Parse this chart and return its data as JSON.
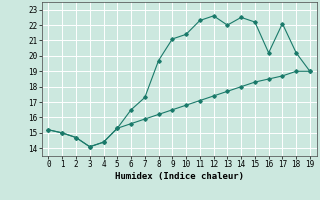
{
  "xlabel": "Humidex (Indice chaleur)",
  "ylabel": "",
  "bg_color": "#cce8df",
  "grid_color": "#ffffff",
  "line_color": "#1a7a6a",
  "xlim": [
    -0.5,
    19.5
  ],
  "ylim": [
    13.5,
    23.5
  ],
  "xticks": [
    0,
    1,
    2,
    3,
    4,
    5,
    6,
    7,
    8,
    9,
    10,
    11,
    12,
    13,
    14,
    15,
    16,
    17,
    18,
    19
  ],
  "yticks": [
    14,
    15,
    16,
    17,
    18,
    19,
    20,
    21,
    22,
    23
  ],
  "upper_x": [
    0,
    1,
    2,
    3,
    4,
    5,
    6,
    7,
    8,
    9,
    10,
    11,
    12,
    13,
    14,
    15,
    16,
    17,
    18,
    19
  ],
  "upper_y": [
    15.2,
    15.0,
    14.7,
    14.1,
    14.4,
    15.3,
    16.5,
    17.3,
    19.7,
    21.1,
    21.4,
    22.3,
    22.6,
    22.0,
    22.5,
    22.2,
    20.2,
    22.1,
    20.2,
    19.0
  ],
  "lower_x": [
    0,
    1,
    2,
    3,
    4,
    5,
    6,
    7,
    8,
    9,
    10,
    11,
    12,
    13,
    14,
    15,
    16,
    17,
    18,
    19
  ],
  "lower_y": [
    15.2,
    15.0,
    14.7,
    14.1,
    14.4,
    15.3,
    15.6,
    15.9,
    16.2,
    16.5,
    16.8,
    17.1,
    17.4,
    17.7,
    18.0,
    18.3,
    18.5,
    18.7,
    19.0,
    19.0
  ]
}
